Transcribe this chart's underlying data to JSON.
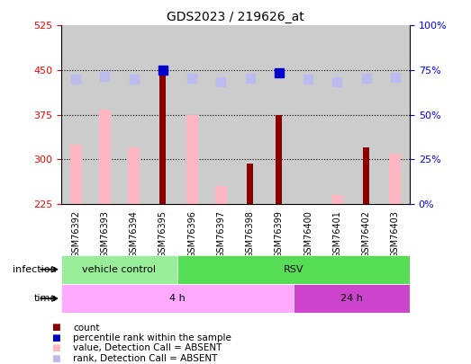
{
  "title": "GDS2023 / 219626_at",
  "samples": [
    "GSM76392",
    "GSM76393",
    "GSM76394",
    "GSM76395",
    "GSM76396",
    "GSM76397",
    "GSM76398",
    "GSM76399",
    "GSM76400",
    "GSM76401",
    "GSM76402",
    "GSM76403"
  ],
  "value_bars": [
    325,
    383,
    320,
    null,
    375,
    255,
    null,
    null,
    null,
    240,
    null,
    310
  ],
  "count_bars": [
    null,
    null,
    null,
    450,
    null,
    null,
    293,
    375,
    null,
    null,
    320,
    null
  ],
  "rank_dots_absent": [
    435,
    440,
    435,
    null,
    437,
    430,
    437,
    null,
    435,
    430,
    437,
    438
  ],
  "rank_dots_present": [
    null,
    null,
    null,
    450,
    null,
    null,
    null,
    445,
    null,
    null,
    null,
    null
  ],
  "value_color": "#FFB6C1",
  "count_color": "#8B0000",
  "rank_absent_color": "#BBBBEE",
  "rank_present_color": "#0000CC",
  "ylim_left": [
    225,
    525
  ],
  "ylim_right": [
    0,
    100
  ],
  "yticks_left": [
    225,
    300,
    375,
    450,
    525
  ],
  "yticks_right": [
    0,
    25,
    50,
    75,
    100
  ],
  "ytick_right_labels": [
    "0%",
    "25%",
    "50%",
    "75%",
    "100%"
  ],
  "grid_lines": [
    300,
    375,
    450
  ],
  "background_color": "#CCCCCC",
  "bar_width": 0.4,
  "dot_size": 55,
  "infection_spans": [
    {
      "xstart": -0.5,
      "xend": 3.5,
      "color": "#99EE99",
      "label": "vehicle control"
    },
    {
      "xstart": 3.5,
      "xend": 11.5,
      "color": "#55DD55",
      "label": "RSV"
    }
  ],
  "time_spans": [
    {
      "xstart": -0.5,
      "xend": 7.5,
      "color": "#FFAAFF",
      "label": "4 h"
    },
    {
      "xstart": 7.5,
      "xend": 11.5,
      "color": "#CC44CC",
      "label": "24 h"
    }
  ],
  "legend_items": [
    {
      "color": "#8B0000",
      "label": "count"
    },
    {
      "color": "#0000CC",
      "label": "percentile rank within the sample"
    },
    {
      "color": "#FFB6C1",
      "label": "value, Detection Call = ABSENT"
    },
    {
      "color": "#BBBBEE",
      "label": "rank, Detection Call = ABSENT"
    }
  ],
  "left_labels": [
    {
      "text": "infection",
      "row": "infection"
    },
    {
      "text": "time",
      "row": "time"
    }
  ]
}
